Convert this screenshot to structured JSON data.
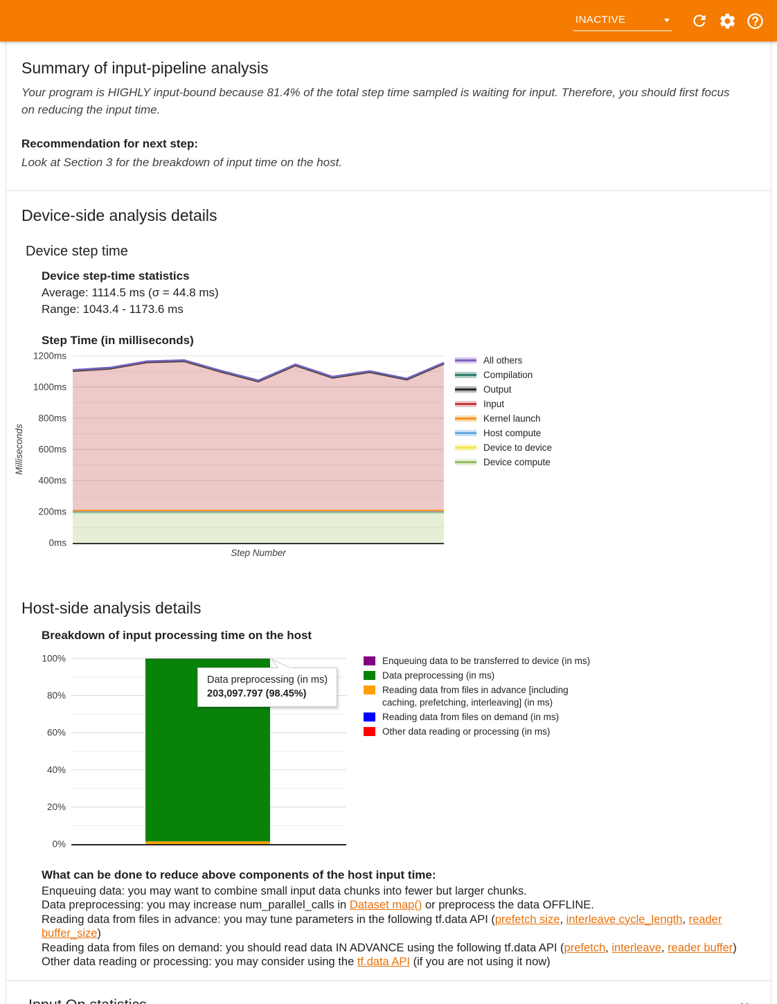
{
  "header": {
    "run_status": "INACTIVE",
    "accent_color": "#f57c00"
  },
  "summary": {
    "title": "Summary of input-pipeline analysis",
    "conclusion": "Your program is HIGHLY input-bound because 81.4% of the total step time sampled is waiting for input. Therefore, you should first focus on reducing the input time.",
    "recommendation_label": "Recommendation for next step:",
    "recommendation": "Look at Section 3 for the breakdown of input time on the host."
  },
  "device_section": {
    "title": "Device-side analysis details",
    "subsection": "Device step time",
    "stats_title": "Device step-time statistics",
    "average": "Average: 1114.5 ms (σ = 44.8 ms)",
    "range": "Range: 1043.4 - 1173.6 ms",
    "chart_title": "Step Time (in milliseconds)"
  },
  "host_section": {
    "title": "Host-side analysis details",
    "chart_title": "Breakdown of input processing time on the host"
  },
  "advice": {
    "heading": "What can be done to reduce above components of the host input time:",
    "lines": [
      [
        {
          "text": "Enqueuing data: you may want to combine small input data chunks into fewer but larger chunks."
        }
      ],
      [
        {
          "text": "Data preprocessing: you may increase num_parallel_calls in "
        },
        {
          "text": "Dataset map()",
          "link": true
        },
        {
          "text": " or preprocess the data OFFLINE."
        }
      ],
      [
        {
          "text": "Reading data from files in advance: you may tune parameters in the following tf.data API ("
        },
        {
          "text": "prefetch size",
          "link": true
        },
        {
          "text": ", "
        },
        {
          "text": "interleave cycle_length",
          "link": true
        },
        {
          "text": ", "
        },
        {
          "text": "reader buffer_size",
          "link": true
        },
        {
          "text": ")"
        }
      ],
      [
        {
          "text": "Reading data from files on demand: you should read data IN ADVANCE using the following tf.data API ("
        },
        {
          "text": "prefetch",
          "link": true
        },
        {
          "text": ", "
        },
        {
          "text": "interleave",
          "link": true
        },
        {
          "text": ", "
        },
        {
          "text": "reader buffer",
          "link": true
        },
        {
          "text": ")"
        }
      ],
      [
        {
          "text": "Other data reading or processing: you may consider using the "
        },
        {
          "text": "tf.data API",
          "link": true
        },
        {
          "text": " (if you are not using it now)"
        }
      ]
    ]
  },
  "input_op": {
    "title": "Input Op statistics"
  },
  "chart_data": [
    {
      "type": "area",
      "stacked": true,
      "title": "Step Time (in milliseconds)",
      "xlabel": "Step Number",
      "ylabel": "Milliseconds",
      "ylim": [
        0,
        1200
      ],
      "y_major_step": 200,
      "y_minor_step": 100,
      "y_tick_suffix": "ms",
      "legend_position": "right",
      "x": [
        1,
        2,
        3,
        4,
        5,
        6,
        7,
        8,
        9,
        10,
        11
      ],
      "series": [
        {
          "name": "Device compute",
          "line": "#94bb60",
          "fill": "#e6efd6",
          "values": [
            195,
            195,
            195,
            195,
            195,
            195,
            195,
            195,
            195,
            195,
            195
          ]
        },
        {
          "name": "Device to device",
          "line": "#f2e74b",
          "fill": "#fbf6b8",
          "values": [
            2,
            2,
            2,
            2,
            2,
            2,
            2,
            2,
            2,
            2,
            2
          ]
        },
        {
          "name": "Host compute",
          "line": "#67a9e0",
          "fill": "#c9e0f7",
          "values": [
            2,
            2,
            2,
            2,
            2,
            2,
            2,
            2,
            2,
            2,
            2
          ]
        },
        {
          "name": "Kernel launch",
          "line": "#f6931d",
          "fill": "#fbddb0",
          "values": [
            8,
            8,
            8,
            8,
            8,
            8,
            8,
            8,
            8,
            8,
            8
          ]
        },
        {
          "name": "Input",
          "line": "#c53a3a",
          "fill": "#edc9c9",
          "values": [
            895,
            910,
            951,
            958,
            890,
            828,
            931,
            852,
            888,
            840,
            942
          ]
        },
        {
          "name": "Output",
          "line": "#2b2b2b",
          "fill": "#b5b5b5",
          "values": [
            2,
            2,
            2,
            2,
            2,
            2,
            2,
            2,
            2,
            2,
            2
          ]
        },
        {
          "name": "Compilation",
          "line": "#2f7d6d",
          "fill": "#aecfc7",
          "values": [
            3,
            3,
            3,
            3,
            3,
            3,
            3,
            3,
            3,
            3,
            3
          ]
        },
        {
          "name": "All others",
          "line": "#7d5fbe",
          "fill": "#d5c8ec",
          "values": [
            3,
            3,
            3,
            3,
            3,
            3,
            3,
            3,
            3,
            3,
            3
          ]
        }
      ]
    },
    {
      "type": "bar",
      "stacked": true,
      "title": "Breakdown of input processing time on the host",
      "ylim": [
        0,
        100
      ],
      "y_major_step": 20,
      "y_minor_step": 10,
      "y_tick_suffix": "%",
      "legend_position": "right",
      "categories": [
        ""
      ],
      "series": [
        {
          "name": "Other data reading or processing (in ms)",
          "color": "#ff0000",
          "values": [
            0
          ]
        },
        {
          "name": "Reading data from files on demand (in ms)",
          "color": "#0000ff",
          "values": [
            0
          ]
        },
        {
          "name": "Reading data from files in advance [including caching, prefetching, interleaving] (in ms)",
          "color": "#ffa000",
          "values": [
            1.45
          ]
        },
        {
          "name": "Data preprocessing (in ms)",
          "color": "#098209",
          "values": [
            98.45
          ]
        },
        {
          "name": "Enqueuing data to be transferred to device (in ms)",
          "color": "#800080",
          "values": [
            0.1
          ]
        }
      ],
      "tooltip": {
        "title": "Data preprocessing (in ms)",
        "value": "203,097.797 (98.45%)"
      }
    }
  ]
}
